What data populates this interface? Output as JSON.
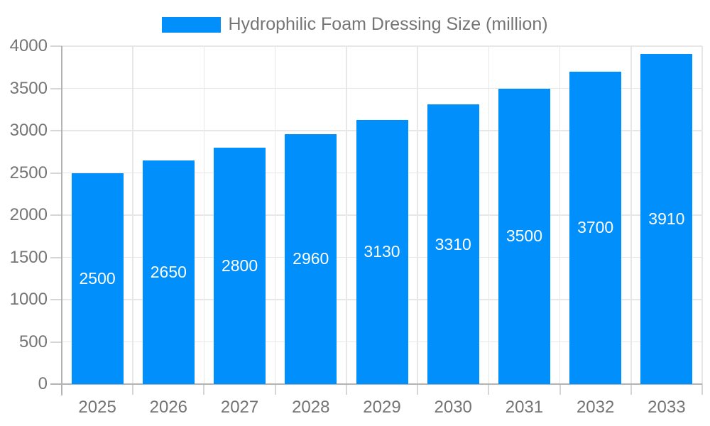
{
  "legend": {
    "label": "Hydrophilic Foam Dressing Size (million)"
  },
  "chart_data": {
    "type": "bar",
    "title": "",
    "series_name": "Hydrophilic Foam Dressing Size (million)",
    "categories": [
      "2025",
      "2026",
      "2027",
      "2028",
      "2029",
      "2030",
      "2031",
      "2032",
      "2033"
    ],
    "values": [
      2500,
      2650,
      2800,
      2960,
      3130,
      3310,
      3500,
      3700,
      3910
    ],
    "bar_value_labels": [
      "2500",
      "2650",
      "2800",
      "2960",
      "3130",
      "3310",
      "3500",
      "3700",
      "3910"
    ],
    "xlabel": "",
    "ylabel": "",
    "ylim": [
      0,
      4000
    ],
    "ytick_step": 500,
    "ytick_labels": [
      "0",
      "500",
      "1000",
      "1500",
      "2000",
      "2500",
      "3000",
      "3500",
      "4000"
    ],
    "grid": true,
    "legend_position": "top-center",
    "colors": {
      "bar": "#008FFB",
      "bar_label": "#ffffff",
      "axis_label": "#757575",
      "legend_text": "#757575",
      "gridline": "#e7e7e7",
      "axis_line": "#b3b3b3",
      "tick": "#d6d6d6",
      "background": "#ffffff"
    }
  }
}
